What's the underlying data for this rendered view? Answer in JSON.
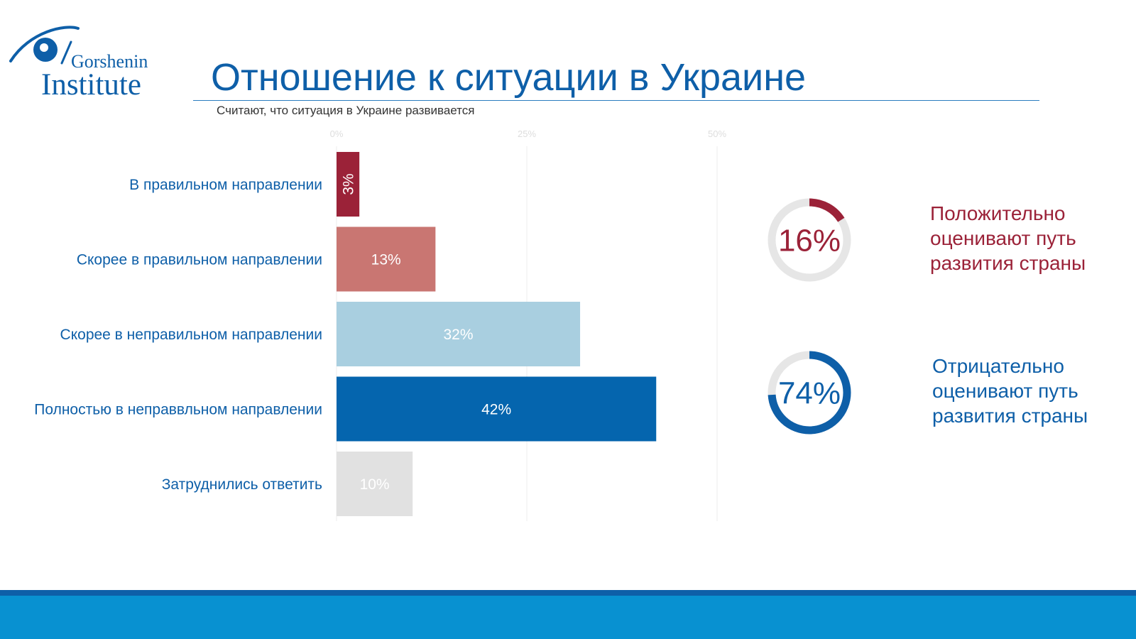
{
  "header": {
    "logo_line1": "Gorshenin",
    "logo_line2": "Institute",
    "title": "Отношение к ситуации в Украине",
    "subtitle": "Считают, что ситуация в Украине развивается"
  },
  "colors": {
    "brand": "#0e5fa8",
    "positive": "#9b2238",
    "negative": "#0e5fa8",
    "footer": "#0891d1"
  },
  "chart_data": {
    "type": "bar",
    "orientation": "horizontal",
    "categories": [
      "В правильном направлении",
      "Скорее в правильном направлении",
      "Скорее в неправильном направлении",
      "Полностью в неправвльном направлении",
      "Затруднились ответить"
    ],
    "values": [
      3,
      13,
      32,
      42,
      10
    ],
    "value_labels": [
      "3%",
      "13%",
      "32%",
      "42%",
      "10%"
    ],
    "bar_colors": [
      "#9b2238",
      "#c97672",
      "#a9cfe0",
      "#0565ae",
      "#e1e1e1"
    ],
    "ticks": [
      "0%",
      "25%",
      "50%"
    ],
    "tick_values": [
      0,
      25,
      50
    ],
    "xlim": [
      0,
      50
    ],
    "grid": true
  },
  "summary": [
    {
      "value": 16,
      "value_label": "16%",
      "text": "Положительно оценивают путь развития страны",
      "color": "#9b2238"
    },
    {
      "value": 74,
      "value_label": "74%",
      "text": "Отрицательно оценивают путь развития страны",
      "color": "#0e5fa8"
    }
  ]
}
